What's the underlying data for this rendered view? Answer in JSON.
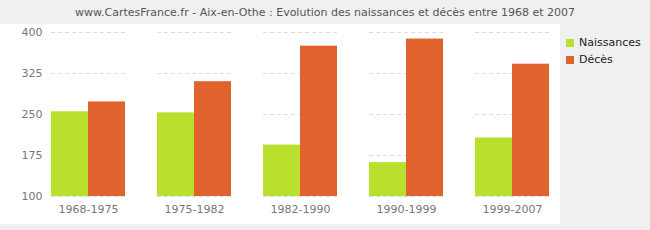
{
  "chart_data": {
    "type": "bar",
    "title": "www.CartesFrance.fr - Aix-en-Othe : Evolution des naissances et décès entre 1968 et 2007",
    "categories": [
      "1968-1975",
      "1975-1982",
      "1982-1990",
      "1990-1999",
      "1999-2007"
    ],
    "series": [
      {
        "name": "Naissances",
        "color": "#b9e02c",
        "values": [
          255,
          253,
          194,
          162,
          207
        ]
      },
      {
        "name": "Décès",
        "color": "#e0622c",
        "values": [
          273,
          310,
          375,
          388,
          342
        ]
      }
    ],
    "ylim": [
      100,
      400
    ],
    "yticks": [
      100,
      175,
      250,
      325,
      400
    ],
    "grid": true,
    "legend": "top-right"
  }
}
